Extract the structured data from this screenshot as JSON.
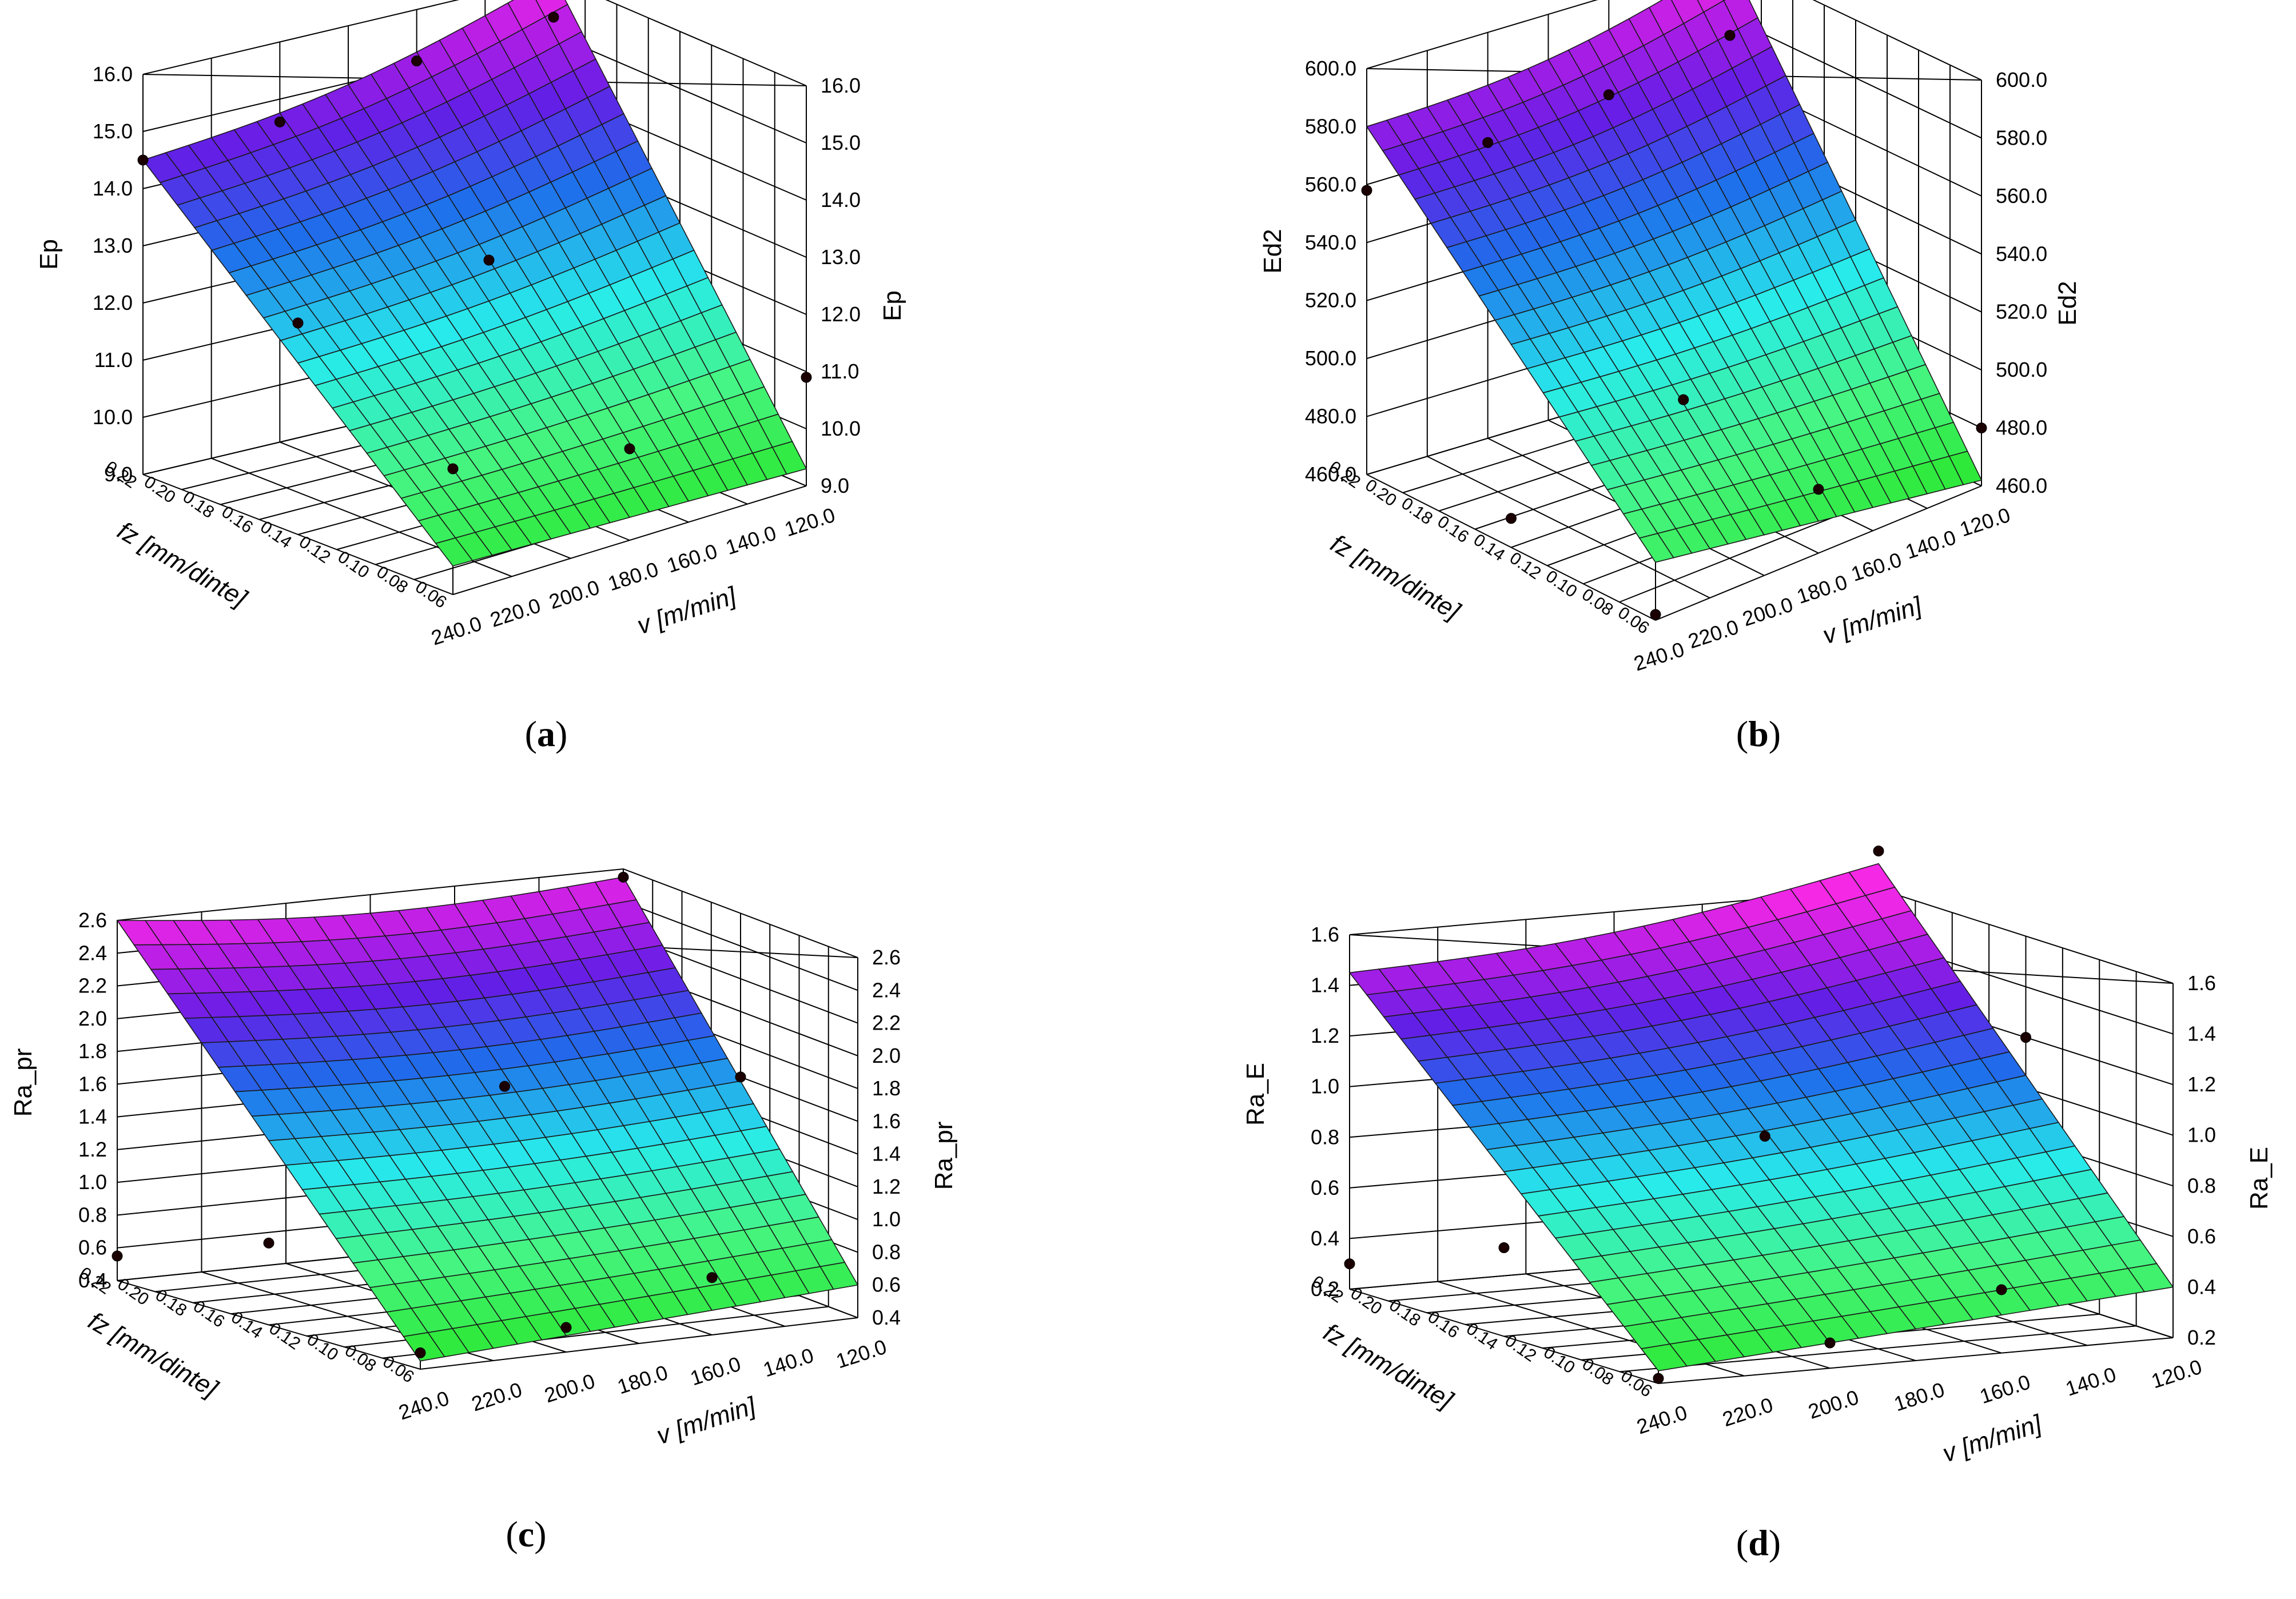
{
  "chart_data": [
    {
      "type": "surface3d",
      "panel_label": "(a)",
      "zlabel": "Ep",
      "xlabel": "v [m/min]",
      "ylabel": "fz [mm/dinte]",
      "x_ticks": [
        "240.0",
        "220.0",
        "200.0",
        "180.0",
        "160.0",
        "140.0",
        "120.0"
      ],
      "y_ticks": [
        "0.22",
        "0.20",
        "0.18",
        "0.16",
        "0.14",
        "0.12",
        "0.10",
        "0.08",
        "0.06"
      ],
      "z_ticks": [
        "9.0",
        "10.0",
        "11.0",
        "12.0",
        "13.0",
        "14.0",
        "15.0",
        "16.0"
      ],
      "z_range": [
        9.0,
        16.0
      ],
      "surface_corners": {
        "v240_fz0.22": 14.5,
        "v120_fz0.22": 16.0,
        "v240_fz0.06": 9.5,
        "v120_fz0.06": 9.3
      },
      "points": [
        {
          "v": 240,
          "fz": 0.22,
          "z": 14.5
        },
        {
          "v": 200,
          "fz": 0.22,
          "z": 14.6
        },
        {
          "v": 160,
          "fz": 0.22,
          "z": 15.1
        },
        {
          "v": 120,
          "fz": 0.22,
          "z": 15.3
        },
        {
          "v": 240,
          "fz": 0.14,
          "z": 12.7
        },
        {
          "v": 180,
          "fz": 0.14,
          "z": 12.9
        },
        {
          "v": 240,
          "fz": 0.06,
          "z": 11.2
        },
        {
          "v": 180,
          "fz": 0.06,
          "z": 10.6
        },
        {
          "v": 120,
          "fz": 0.06,
          "z": 10.9
        }
      ]
    },
    {
      "type": "surface3d",
      "panel_label": "(b)",
      "zlabel": "Ed2",
      "xlabel": "v [m/min]",
      "ylabel": "fz [mm/dinte]",
      "x_ticks": [
        "240.0",
        "220.0",
        "200.0",
        "180.0",
        "160.0",
        "140.0",
        "120.0"
      ],
      "y_ticks": [
        "0.22",
        "0.20",
        "0.18",
        "0.16",
        "0.14",
        "0.12",
        "0.10",
        "0.08",
        "0.06"
      ],
      "z_ticks": [
        "460.0",
        "480.0",
        "500.0",
        "520.0",
        "540.0",
        "560.0",
        "580.0",
        "600.0"
      ],
      "z_range": [
        460,
        600
      ],
      "surface_corners": {
        "v240_fz0.22": 580,
        "v120_fz0.22": 600,
        "v240_fz0.06": 480,
        "v120_fz0.06": 462
      },
      "points": [
        {
          "v": 240,
          "fz": 0.22,
          "z": 558
        },
        {
          "v": 200,
          "fz": 0.22,
          "z": 562
        },
        {
          "v": 160,
          "fz": 0.22,
          "z": 566
        },
        {
          "v": 120,
          "fz": 0.22,
          "z": 574
        },
        {
          "v": 240,
          "fz": 0.14,
          "z": 470
        },
        {
          "v": 180,
          "fz": 0.14,
          "z": 490
        },
        {
          "v": 240,
          "fz": 0.06,
          "z": 462
        },
        {
          "v": 180,
          "fz": 0.06,
          "z": 482
        },
        {
          "v": 120,
          "fz": 0.06,
          "z": 480
        }
      ]
    },
    {
      "type": "surface3d",
      "panel_label": "(c)",
      "zlabel": "Ra_pr",
      "xlabel": "v [m/min]",
      "ylabel": "fz [mm/dinte]",
      "x_ticks": [
        "240.0",
        "220.0",
        "200.0",
        "180.0",
        "160.0",
        "140.0",
        "120.0"
      ],
      "y_ticks": [
        "0.22",
        "0.20",
        "0.18",
        "0.16",
        "0.14",
        "0.12",
        "0.10",
        "0.08",
        "0.06"
      ],
      "z_ticks": [
        "0.4",
        "0.6",
        "0.8",
        "1.0",
        "1.2",
        "1.4",
        "1.6",
        "1.8",
        "2.0",
        "2.2",
        "2.4",
        "2.6"
      ],
      "z_range": [
        0.4,
        2.6
      ],
      "surface_corners": {
        "v240_fz0.22": 2.6,
        "v120_fz0.22": 2.55,
        "v240_fz0.06": 0.45,
        "v120_fz0.06": 0.6
      },
      "points": [
        {
          "v": 120,
          "fz": 0.22,
          "z": 2.55
        },
        {
          "v": 180,
          "fz": 0.14,
          "z": 1.7
        },
        {
          "v": 120,
          "fz": 0.14,
          "z": 1.6
        },
        {
          "v": 240,
          "fz": 0.14,
          "z": 0.9
        },
        {
          "v": 240,
          "fz": 0.06,
          "z": 0.5
        },
        {
          "v": 200,
          "fz": 0.06,
          "z": 0.55
        },
        {
          "v": 160,
          "fz": 0.06,
          "z": 0.75
        },
        {
          "v": 240,
          "fz": 0.22,
          "z": 0.55
        }
      ]
    },
    {
      "type": "surface3d",
      "panel_label": "(d)",
      "zlabel": "Ra_E",
      "xlabel": "v [m/min]",
      "ylabel": "fz [mm/dinte]",
      "x_ticks": [
        "240.0",
        "220.0",
        "200.0",
        "180.0",
        "160.0",
        "140.0",
        "120.0"
      ],
      "y_ticks": [
        "0.22",
        "0.20",
        "0.18",
        "0.16",
        "0.14",
        "0.12",
        "0.10",
        "0.08",
        "0.06"
      ],
      "z_ticks": [
        "0.2",
        "0.4",
        "0.6",
        "0.8",
        "1.0",
        "1.2",
        "1.4",
        "1.6"
      ],
      "z_range": [
        0.2,
        1.6
      ],
      "surface_corners": {
        "v240_fz0.22": 1.45,
        "v120_fz0.22": 1.7,
        "v240_fz0.06": 0.25,
        "v120_fz0.06": 0.4
      },
      "points": [
        {
          "v": 120,
          "fz": 0.22,
          "z": 1.75
        },
        {
          "v": 120,
          "fz": 0.14,
          "z": 1.2
        },
        {
          "v": 180,
          "fz": 0.14,
          "z": 0.9
        },
        {
          "v": 240,
          "fz": 0.14,
          "z": 0.55
        },
        {
          "v": 240,
          "fz": 0.22,
          "z": 0.3
        },
        {
          "v": 200,
          "fz": 0.06,
          "z": 0.3
        },
        {
          "v": 160,
          "fz": 0.06,
          "z": 0.45
        },
        {
          "v": 240,
          "fz": 0.06,
          "z": 0.22
        }
      ]
    }
  ]
}
